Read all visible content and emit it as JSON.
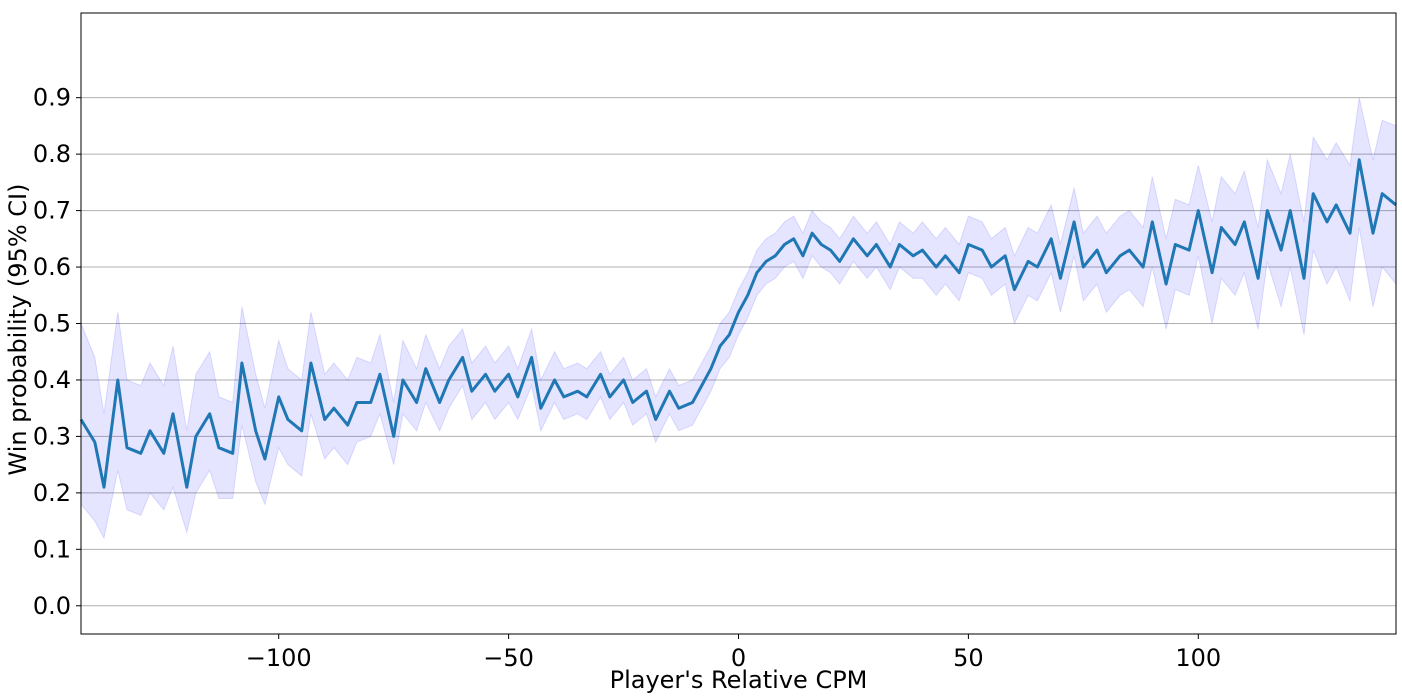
{
  "chart_data": {
    "type": "line",
    "xlabel": "Player's Relative CPM",
    "ylabel": "Win probability (95% CI)",
    "xlim": [
      -143,
      143
    ],
    "ylim": [
      -0.05,
      1.05
    ],
    "x_ticks": [
      -100,
      -50,
      0,
      50,
      100
    ],
    "x_tick_labels": [
      "−100",
      "−50",
      "0",
      "50",
      "100"
    ],
    "y_ticks": [
      0.0,
      0.1,
      0.2,
      0.3,
      0.4,
      0.5,
      0.6,
      0.7,
      0.8,
      0.9
    ],
    "y_tick_labels": [
      "0.0",
      "0.1",
      "0.2",
      "0.3",
      "0.4",
      "0.5",
      "0.6",
      "0.7",
      "0.8",
      "0.9"
    ],
    "grid": "horizontal",
    "line_color": "#1f77b4",
    "band_color": "#0000ff",
    "series": [
      {
        "x": [
          -143,
          -140,
          -138,
          -135,
          -133,
          -130,
          -128,
          -125,
          -123,
          -120,
          -118,
          -115,
          -113,
          -110,
          -108,
          -105,
          -103,
          -100,
          -98,
          -95,
          -93,
          -90,
          -88,
          -85,
          -83,
          -80,
          -78,
          -75,
          -73,
          -70,
          -68,
          -65,
          -63,
          -60,
          -58,
          -55,
          -53,
          -50,
          -48,
          -45,
          -43,
          -40,
          -38,
          -35,
          -33,
          -30,
          -28,
          -25,
          -23,
          -20,
          -18,
          -15,
          -13,
          -10,
          -8,
          -6,
          -4,
          -2,
          0,
          2,
          4,
          6,
          8,
          10,
          12,
          14,
          16,
          18,
          20,
          22,
          25,
          28,
          30,
          33,
          35,
          38,
          40,
          43,
          45,
          48,
          50,
          53,
          55,
          58,
          60,
          63,
          65,
          68,
          70,
          73,
          75,
          78,
          80,
          83,
          85,
          88,
          90,
          93,
          95,
          98,
          100,
          103,
          105,
          108,
          110,
          113,
          115,
          118,
          120,
          123,
          125,
          128,
          130,
          133,
          135,
          138,
          140,
          143
        ],
        "y": [
          0.33,
          0.29,
          0.21,
          0.4,
          0.28,
          0.27,
          0.31,
          0.27,
          0.34,
          0.21,
          0.3,
          0.34,
          0.28,
          0.27,
          0.43,
          0.31,
          0.26,
          0.37,
          0.33,
          0.31,
          0.43,
          0.33,
          0.35,
          0.32,
          0.36,
          0.36,
          0.41,
          0.3,
          0.4,
          0.36,
          0.42,
          0.36,
          0.4,
          0.44,
          0.38,
          0.41,
          0.38,
          0.41,
          0.37,
          0.44,
          0.35,
          0.4,
          0.37,
          0.38,
          0.37,
          0.41,
          0.37,
          0.4,
          0.36,
          0.38,
          0.33,
          0.38,
          0.35,
          0.36,
          0.39,
          0.42,
          0.46,
          0.48,
          0.52,
          0.55,
          0.59,
          0.61,
          0.62,
          0.64,
          0.65,
          0.62,
          0.66,
          0.64,
          0.63,
          0.61,
          0.65,
          0.62,
          0.64,
          0.6,
          0.64,
          0.62,
          0.63,
          0.6,
          0.62,
          0.59,
          0.64,
          0.63,
          0.6,
          0.62,
          0.56,
          0.61,
          0.6,
          0.65,
          0.58,
          0.68,
          0.6,
          0.63,
          0.59,
          0.62,
          0.63,
          0.6,
          0.68,
          0.57,
          0.64,
          0.63,
          0.7,
          0.59,
          0.67,
          0.64,
          0.68,
          0.58,
          0.7,
          0.63,
          0.7,
          0.58,
          0.73,
          0.68,
          0.71,
          0.66,
          0.79,
          0.66,
          0.73,
          0.71
        ],
        "lower": [
          0.18,
          0.15,
          0.12,
          0.24,
          0.17,
          0.16,
          0.2,
          0.17,
          0.21,
          0.13,
          0.2,
          0.24,
          0.19,
          0.19,
          0.32,
          0.22,
          0.18,
          0.28,
          0.25,
          0.23,
          0.34,
          0.26,
          0.28,
          0.25,
          0.29,
          0.3,
          0.34,
          0.25,
          0.34,
          0.31,
          0.36,
          0.31,
          0.35,
          0.39,
          0.33,
          0.36,
          0.33,
          0.36,
          0.33,
          0.39,
          0.31,
          0.36,
          0.33,
          0.34,
          0.33,
          0.37,
          0.33,
          0.36,
          0.32,
          0.34,
          0.29,
          0.34,
          0.31,
          0.32,
          0.35,
          0.38,
          0.42,
          0.44,
          0.48,
          0.51,
          0.55,
          0.57,
          0.58,
          0.6,
          0.61,
          0.58,
          0.62,
          0.6,
          0.59,
          0.57,
          0.61,
          0.58,
          0.6,
          0.56,
          0.6,
          0.58,
          0.58,
          0.55,
          0.57,
          0.54,
          0.59,
          0.58,
          0.55,
          0.57,
          0.5,
          0.55,
          0.54,
          0.59,
          0.52,
          0.62,
          0.54,
          0.57,
          0.52,
          0.55,
          0.56,
          0.53,
          0.6,
          0.49,
          0.56,
          0.55,
          0.62,
          0.5,
          0.58,
          0.55,
          0.59,
          0.49,
          0.61,
          0.53,
          0.6,
          0.48,
          0.63,
          0.57,
          0.6,
          0.54,
          0.67,
          0.53,
          0.6,
          0.57
        ],
        "upper": [
          0.5,
          0.44,
          0.34,
          0.52,
          0.4,
          0.39,
          0.43,
          0.39,
          0.46,
          0.31,
          0.41,
          0.45,
          0.37,
          0.36,
          0.53,
          0.41,
          0.35,
          0.47,
          0.42,
          0.4,
          0.52,
          0.41,
          0.43,
          0.4,
          0.44,
          0.43,
          0.48,
          0.36,
          0.47,
          0.42,
          0.48,
          0.42,
          0.46,
          0.49,
          0.43,
          0.46,
          0.43,
          0.46,
          0.42,
          0.49,
          0.4,
          0.45,
          0.42,
          0.43,
          0.42,
          0.45,
          0.41,
          0.44,
          0.4,
          0.42,
          0.37,
          0.42,
          0.39,
          0.4,
          0.43,
          0.46,
          0.5,
          0.52,
          0.56,
          0.59,
          0.63,
          0.65,
          0.66,
          0.68,
          0.69,
          0.66,
          0.7,
          0.68,
          0.67,
          0.65,
          0.69,
          0.66,
          0.68,
          0.64,
          0.68,
          0.66,
          0.68,
          0.65,
          0.67,
          0.64,
          0.69,
          0.68,
          0.65,
          0.67,
          0.62,
          0.67,
          0.66,
          0.71,
          0.64,
          0.74,
          0.66,
          0.69,
          0.66,
          0.69,
          0.7,
          0.67,
          0.76,
          0.65,
          0.72,
          0.71,
          0.78,
          0.68,
          0.76,
          0.73,
          0.77,
          0.67,
          0.79,
          0.73,
          0.8,
          0.68,
          0.83,
          0.79,
          0.82,
          0.78,
          0.9,
          0.79,
          0.86,
          0.85
        ]
      }
    ]
  }
}
